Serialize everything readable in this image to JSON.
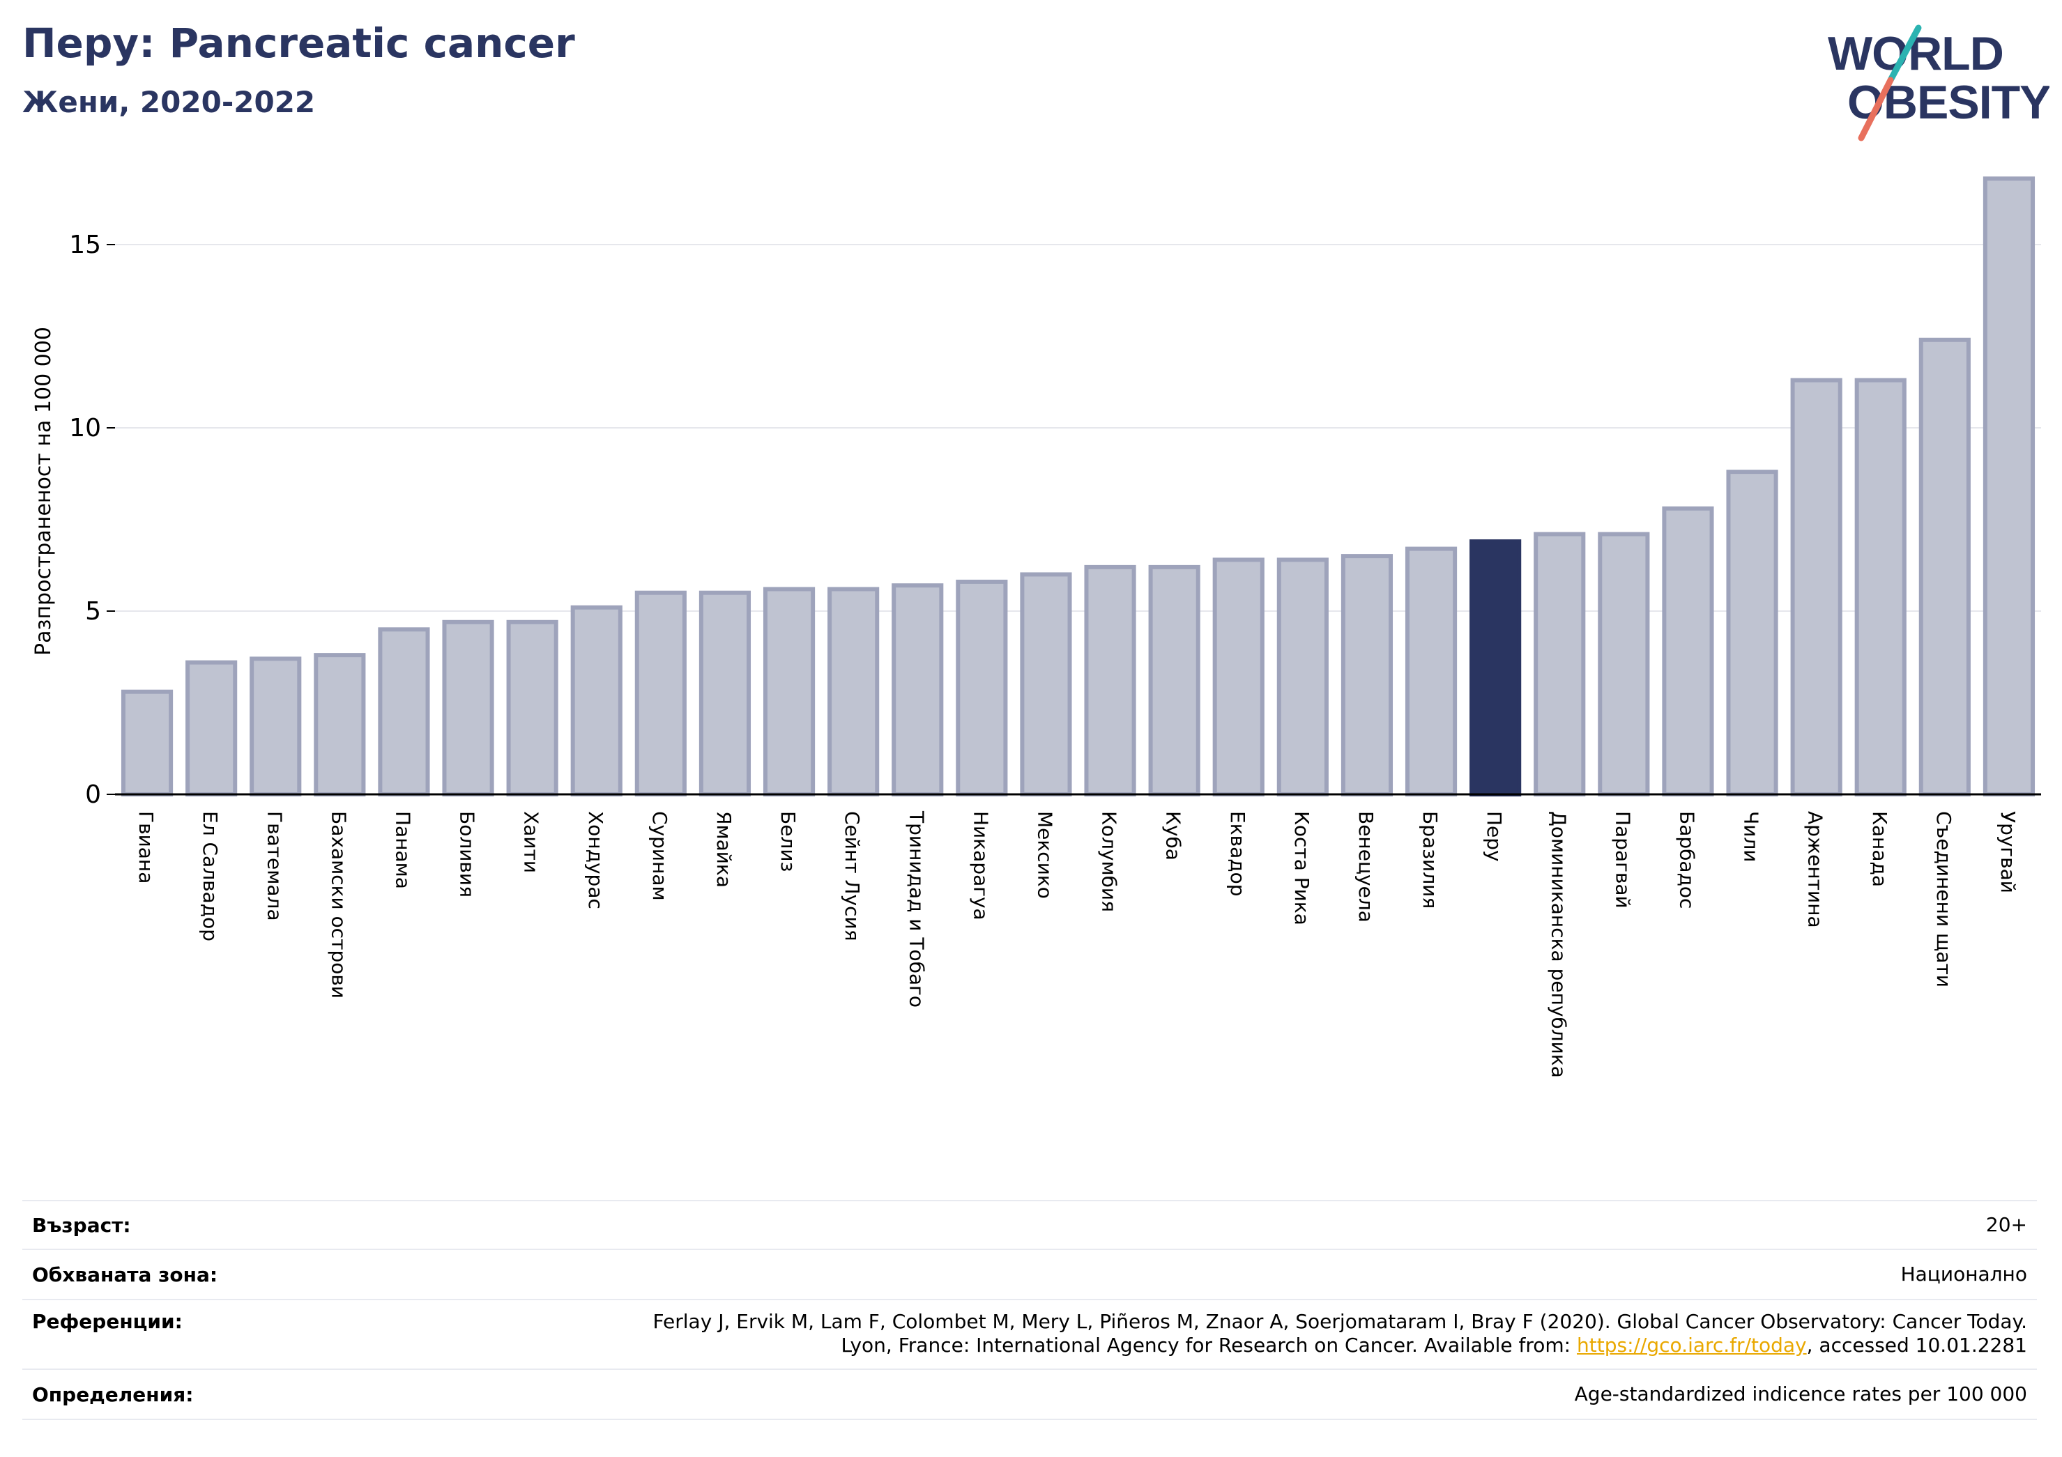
{
  "header": {
    "title": "Перу: Pancreatic cancer",
    "subtitle": "Жени, 2020-2022"
  },
  "logo": {
    "line1": "WORLD",
    "line2": "OBESITY",
    "colors": {
      "text": "#2a3561",
      "slash_teal": "#2bb3b1",
      "slash_coral": "#e8705d"
    }
  },
  "chart_data": {
    "type": "bar",
    "title": "Перу: Pancreatic cancer",
    "subtitle": "Жени, 2020-2022",
    "ylabel": "Разпространеност  на 100 000",
    "xlabel": "",
    "ylim": [
      0,
      17.5
    ],
    "yticks": [
      0,
      5,
      10,
      15
    ],
    "grid": true,
    "categories": [
      "Гвиана",
      "Ел Салвадор",
      "Гватемала",
      "Бахамски острови",
      "Панама",
      "Боливия",
      "Хаити",
      "Хондурас",
      "Суринам",
      "Ямайка",
      "Белиз",
      "Сейнт Лусия",
      "Тринидад и Тобаго",
      "Никарагуа",
      "Мексико",
      "Колумбия",
      "Куба",
      "Еквадор",
      "Коста Рика",
      "Венецуела",
      "Бразилия",
      "Перу",
      "Доминиканска република",
      "Парагвай",
      "Барбадос",
      "Чили",
      "Аржентина",
      "Канада",
      "Съединени щати",
      "Уругвай"
    ],
    "values": [
      2.8,
      3.6,
      3.7,
      3.8,
      4.5,
      4.7,
      4.7,
      5.1,
      5.5,
      5.5,
      5.6,
      5.6,
      5.7,
      5.8,
      6.0,
      6.2,
      6.2,
      6.4,
      6.4,
      6.5,
      6.7,
      6.9,
      7.1,
      7.1,
      7.8,
      8.8,
      11.3,
      11.3,
      12.4,
      16.8
    ],
    "highlight": "Перу",
    "colors": {
      "bar": "#bfc3d1",
      "bar_edge": "#9ea3bb",
      "highlight": "#2a3561"
    }
  },
  "footer": {
    "rows": [
      {
        "label": "Възраст:",
        "value": "20+"
      },
      {
        "label": "Обхваната зона:",
        "value": "Национално"
      },
      {
        "label": "Референции:",
        "value_line1": "Ferlay J, Ervik M, Lam F, Colombet M, Mery L, Piñeros M, Znaor A, Soerjomataram I, Bray F (2020). Global Cancer Observatory: Cancer Today.",
        "value_line2_pre": "Lyon, France: International Agency for Research on Cancer. Available from: ",
        "link": "https://gco.iarc.fr/today",
        "value_line2_post": ", accessed 10.01.2281"
      },
      {
        "label": "Определения:",
        "value": "Age-standardized indicence rates per 100 000"
      }
    ]
  }
}
